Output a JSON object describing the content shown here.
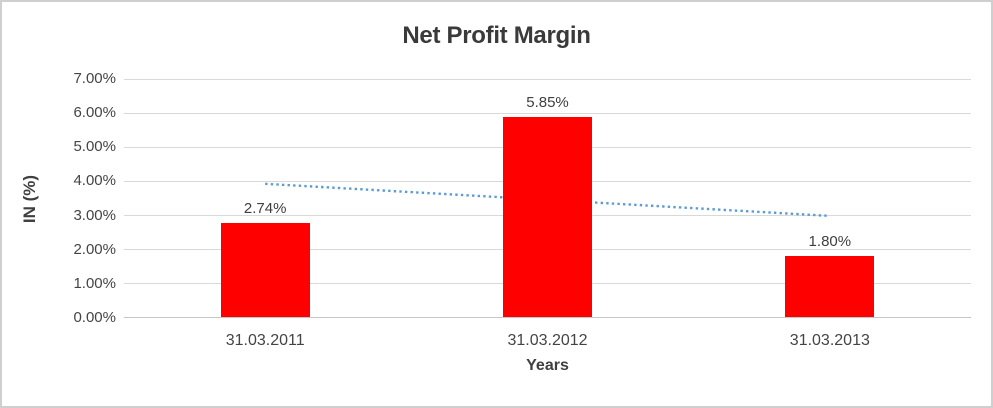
{
  "chart_data": {
    "type": "bar",
    "title": "Net Profit Margin",
    "categories": [
      "31.03.2011",
      "31.03.2012",
      "31.03.2013"
    ],
    "series": [
      {
        "name": "Net Profit Margin",
        "values": [
          2.74,
          5.85,
          1.8
        ],
        "color": "#ff0000"
      }
    ],
    "data_labels": [
      "2.74%",
      "5.85%",
      "1.80%"
    ],
    "xlabel": "Years",
    "ylabel": "IN (%)",
    "ylim": [
      0,
      7
    ],
    "ytick_step": 1,
    "ytick_labels": [
      "0.00%",
      "1.00%",
      "2.00%",
      "3.00%",
      "4.00%",
      "5.00%",
      "6.00%",
      "7.00%"
    ],
    "grid": true,
    "legend": false,
    "trendline": {
      "type": "linear",
      "style": "dotted",
      "color": "#5b9bd5",
      "values_at_categories": [
        3.93,
        3.46,
        2.99
      ]
    }
  },
  "colors": {
    "bar": "#ff0000",
    "trendline": "#5b9bd5",
    "gridline": "#d9d9d9",
    "axis_line": "#c6c6c6",
    "text": "#404040",
    "border": "#cfcfcf"
  }
}
